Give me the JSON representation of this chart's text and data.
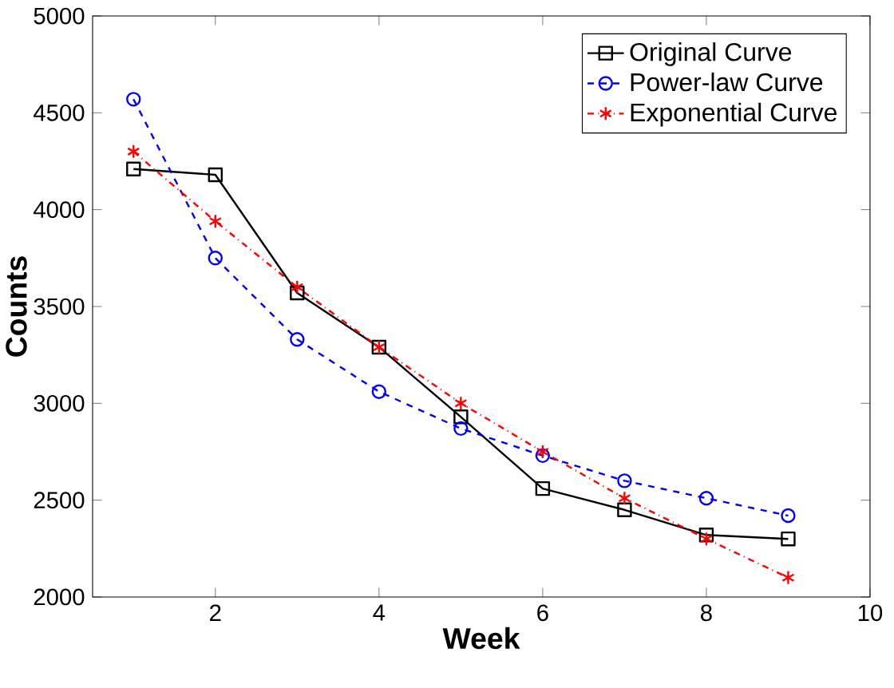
{
  "chart_data": {
    "type": "line",
    "xlabel": "Week",
    "ylabel": "Counts",
    "x": [
      1,
      2,
      3,
      4,
      5,
      6,
      7,
      8,
      9
    ],
    "series": [
      {
        "name": "Original Curve",
        "color": "#000000",
        "marker": "square",
        "line_style": "solid",
        "values": [
          4210,
          4180,
          3570,
          3290,
          2930,
          2560,
          2450,
          2320,
          2300
        ]
      },
      {
        "name": "Power-law Curve",
        "color": "#0000ff",
        "marker": "circle",
        "line_style": "dashed",
        "values": [
          4570,
          3750,
          3330,
          3060,
          2870,
          2730,
          2600,
          2510,
          2420
        ]
      },
      {
        "name": "Exponential Curve",
        "color": "#ff0000",
        "marker": "cross",
        "line_style": "dashdot",
        "values": [
          4300,
          3940,
          3600,
          3290,
          3000,
          2750,
          2510,
          2300,
          2100
        ]
      }
    ],
    "xlim": [
      0.5,
      10
    ],
    "xticks": [
      2,
      4,
      6,
      8,
      10
    ],
    "ylim": [
      2000,
      5000
    ],
    "yticks": [
      2000,
      2500,
      3000,
      3500,
      4000,
      4500,
      5000
    ],
    "grid": false,
    "legend": "top right"
  }
}
